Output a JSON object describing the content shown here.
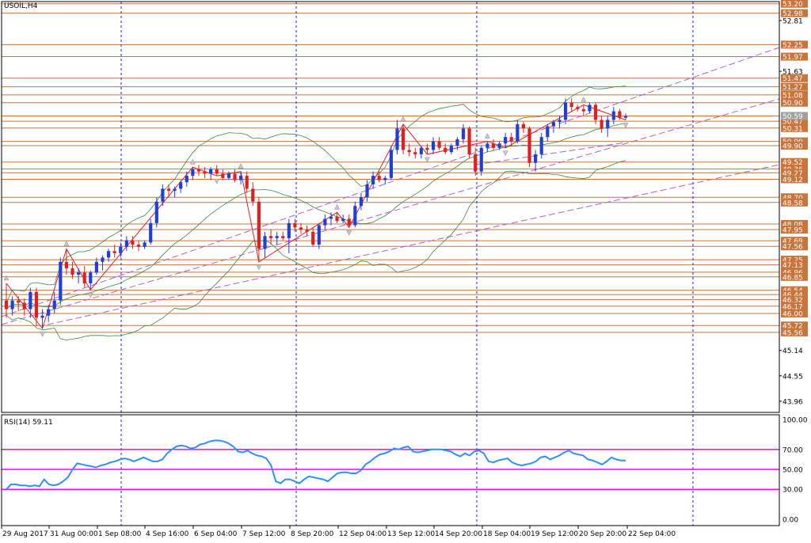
{
  "symbol_label": "USOIL,H4",
  "rsi_label": "RSI(14) 59.11",
  "colors": {
    "bull": "#1f3fd8",
    "bear": "#e02020",
    "level_line": "#c8743a",
    "level_box": "#c8743a",
    "band": "#3a8a3a",
    "channel": "#b060d0",
    "zigzag": "#e02020",
    "rsi_line": "#2e90ff",
    "rsi_level": "#ff00ff",
    "grid": "#2020c0"
  },
  "chart_data": [
    {
      "type": "candlestick",
      "title": "USOIL,H4",
      "ylim": [
        43.7,
        53.25
      ],
      "x_labels": [
        "29 Aug 2017",
        "31 Aug 00:00",
        "1 Sep 08:00",
        "4 Sep 16:00",
        "6 Sep 04:00",
        "7 Sep 12:00",
        "8 Sep 20:00",
        "12 Sep 04:00",
        "13 Sep 12:00",
        "14 Sep 20:00",
        "18 Sep 04:00",
        "19 Sep 12:00",
        "20 Sep 20:00",
        "22 Sep 04:00"
      ],
      "y_ticks": [
        "52.81",
        "51.63",
        "45.14",
        "44.55",
        "43.96"
      ],
      "levels": [
        "53.20",
        "52.98",
        "52.25",
        "51.97",
        "51.47",
        "51.27",
        "51.08",
        "50.90",
        "50.59",
        "50.47",
        "50.31",
        "50.00",
        "49.90",
        "49.52",
        "49.36",
        "49.27",
        "49.12",
        "48.70",
        "48.58",
        "48.08",
        "47.95",
        "47.69",
        "47.56",
        "47.25",
        "47.13",
        "46.96",
        "46.85",
        "46.54",
        "46.44",
        "46.32",
        "46.17",
        "46.00",
        "45.72",
        "45.56"
      ],
      "current_price": "50.59",
      "candles": [
        {
          "o": 46.3,
          "h": 46.7,
          "l": 45.9,
          "c": 46.1
        },
        {
          "o": 46.1,
          "h": 46.4,
          "l": 45.95,
          "c": 46.3
        },
        {
          "o": 46.3,
          "h": 46.4,
          "l": 46.05,
          "c": 46.25
        },
        {
          "o": 46.25,
          "h": 46.35,
          "l": 45.95,
          "c": 46.1
        },
        {
          "o": 46.1,
          "h": 46.6,
          "l": 45.9,
          "c": 46.5
        },
        {
          "o": 46.5,
          "h": 46.6,
          "l": 45.7,
          "c": 45.9
        },
        {
          "o": 45.9,
          "h": 46.1,
          "l": 45.65,
          "c": 45.95
        },
        {
          "o": 45.95,
          "h": 46.2,
          "l": 45.8,
          "c": 46.1
        },
        {
          "o": 46.1,
          "h": 46.5,
          "l": 46.0,
          "c": 46.3
        },
        {
          "o": 46.3,
          "h": 47.3,
          "l": 46.2,
          "c": 47.2
        },
        {
          "o": 47.2,
          "h": 47.5,
          "l": 46.9,
          "c": 47.05
        },
        {
          "o": 47.05,
          "h": 47.2,
          "l": 46.8,
          "c": 46.9
        },
        {
          "o": 46.9,
          "h": 47.05,
          "l": 46.7,
          "c": 46.95
        },
        {
          "o": 46.95,
          "h": 47.1,
          "l": 46.6,
          "c": 46.7
        },
        {
          "o": 46.7,
          "h": 47.0,
          "l": 46.55,
          "c": 46.95
        },
        {
          "o": 46.95,
          "h": 47.3,
          "l": 46.9,
          "c": 47.2
        },
        {
          "o": 47.2,
          "h": 47.35,
          "l": 47.0,
          "c": 47.3
        },
        {
          "o": 47.3,
          "h": 47.5,
          "l": 47.2,
          "c": 47.45
        },
        {
          "o": 47.45,
          "h": 47.6,
          "l": 47.3,
          "c": 47.4
        },
        {
          "o": 47.4,
          "h": 47.65,
          "l": 47.3,
          "c": 47.55
        },
        {
          "o": 47.55,
          "h": 47.8,
          "l": 47.45,
          "c": 47.7
        },
        {
          "o": 47.7,
          "h": 47.8,
          "l": 47.5,
          "c": 47.6
        },
        {
          "o": 47.6,
          "h": 47.7,
          "l": 47.45,
          "c": 47.55
        },
        {
          "o": 47.55,
          "h": 47.7,
          "l": 47.5,
          "c": 47.65
        },
        {
          "o": 47.65,
          "h": 48.2,
          "l": 47.6,
          "c": 48.1
        },
        {
          "o": 48.1,
          "h": 48.7,
          "l": 48.0,
          "c": 48.6
        },
        {
          "o": 48.6,
          "h": 49.0,
          "l": 48.5,
          "c": 48.9
        },
        {
          "o": 48.9,
          "h": 49.0,
          "l": 48.7,
          "c": 48.85
        },
        {
          "o": 48.85,
          "h": 48.95,
          "l": 48.7,
          "c": 48.9
        },
        {
          "o": 48.9,
          "h": 49.1,
          "l": 48.8,
          "c": 49.05
        },
        {
          "o": 49.05,
          "h": 49.3,
          "l": 48.95,
          "c": 49.2
        },
        {
          "o": 49.2,
          "h": 49.4,
          "l": 49.1,
          "c": 49.35
        },
        {
          "o": 49.35,
          "h": 49.45,
          "l": 49.2,
          "c": 49.3
        },
        {
          "o": 49.3,
          "h": 49.4,
          "l": 49.15,
          "c": 49.25
        },
        {
          "o": 49.25,
          "h": 49.4,
          "l": 49.1,
          "c": 49.35
        },
        {
          "o": 49.35,
          "h": 49.45,
          "l": 49.2,
          "c": 49.25
        },
        {
          "o": 49.25,
          "h": 49.35,
          "l": 49.1,
          "c": 49.15
        },
        {
          "o": 49.15,
          "h": 49.3,
          "l": 49.1,
          "c": 49.25
        },
        {
          "o": 49.25,
          "h": 49.35,
          "l": 49.05,
          "c": 49.1
        },
        {
          "o": 49.1,
          "h": 49.3,
          "l": 49.0,
          "c": 49.2
        },
        {
          "o": 49.2,
          "h": 49.3,
          "l": 48.8,
          "c": 48.9
        },
        {
          "o": 48.9,
          "h": 49.05,
          "l": 48.5,
          "c": 48.6
        },
        {
          "o": 48.6,
          "h": 48.7,
          "l": 47.2,
          "c": 47.5
        },
        {
          "o": 47.5,
          "h": 47.9,
          "l": 47.3,
          "c": 47.8
        },
        {
          "o": 47.8,
          "h": 47.95,
          "l": 47.6,
          "c": 47.75
        },
        {
          "o": 47.75,
          "h": 47.9,
          "l": 47.6,
          "c": 47.8
        },
        {
          "o": 47.8,
          "h": 47.9,
          "l": 47.7,
          "c": 47.75
        },
        {
          "o": 47.75,
          "h": 48.2,
          "l": 47.4,
          "c": 48.1
        },
        {
          "o": 48.1,
          "h": 48.2,
          "l": 47.9,
          "c": 48.0
        },
        {
          "o": 48.0,
          "h": 48.1,
          "l": 47.85,
          "c": 47.95
        },
        {
          "o": 47.95,
          "h": 48.05,
          "l": 47.8,
          "c": 47.9
        },
        {
          "o": 47.9,
          "h": 48.0,
          "l": 47.55,
          "c": 47.6
        },
        {
          "o": 47.6,
          "h": 48.1,
          "l": 47.5,
          "c": 48.05
        },
        {
          "o": 48.05,
          "h": 48.3,
          "l": 47.95,
          "c": 48.2
        },
        {
          "o": 48.2,
          "h": 48.35,
          "l": 48.05,
          "c": 48.25
        },
        {
          "o": 48.25,
          "h": 48.35,
          "l": 48.1,
          "c": 48.15
        },
        {
          "o": 48.15,
          "h": 48.3,
          "l": 48.1,
          "c": 48.2
        },
        {
          "o": 48.2,
          "h": 48.3,
          "l": 48.0,
          "c": 48.05
        },
        {
          "o": 48.05,
          "h": 48.6,
          "l": 48.0,
          "c": 48.5
        },
        {
          "o": 48.5,
          "h": 48.8,
          "l": 48.4,
          "c": 48.7
        },
        {
          "o": 48.7,
          "h": 49.1,
          "l": 48.6,
          "c": 49.0
        },
        {
          "o": 49.0,
          "h": 49.3,
          "l": 48.9,
          "c": 49.2
        },
        {
          "o": 49.2,
          "h": 49.3,
          "l": 49.05,
          "c": 49.1
        },
        {
          "o": 49.1,
          "h": 49.2,
          "l": 49.0,
          "c": 49.15
        },
        {
          "o": 49.15,
          "h": 49.9,
          "l": 49.1,
          "c": 49.8
        },
        {
          "o": 49.8,
          "h": 50.5,
          "l": 49.7,
          "c": 50.3
        },
        {
          "o": 50.3,
          "h": 50.4,
          "l": 49.7,
          "c": 49.8
        },
        {
          "o": 49.8,
          "h": 49.95,
          "l": 49.65,
          "c": 49.75
        },
        {
          "o": 49.75,
          "h": 49.85,
          "l": 49.6,
          "c": 49.7
        },
        {
          "o": 49.7,
          "h": 49.9,
          "l": 49.6,
          "c": 49.85
        },
        {
          "o": 49.85,
          "h": 49.95,
          "l": 49.7,
          "c": 49.8
        },
        {
          "o": 49.8,
          "h": 50.1,
          "l": 49.7,
          "c": 50.0
        },
        {
          "o": 50.0,
          "h": 50.1,
          "l": 49.8,
          "c": 49.85
        },
        {
          "o": 49.85,
          "h": 49.95,
          "l": 49.7,
          "c": 49.75
        },
        {
          "o": 49.75,
          "h": 49.95,
          "l": 49.7,
          "c": 49.9
        },
        {
          "o": 49.9,
          "h": 50.1,
          "l": 49.8,
          "c": 50.05
        },
        {
          "o": 50.05,
          "h": 50.4,
          "l": 49.95,
          "c": 50.3
        },
        {
          "o": 50.3,
          "h": 50.35,
          "l": 49.6,
          "c": 49.7
        },
        {
          "o": 49.7,
          "h": 49.85,
          "l": 49.2,
          "c": 49.3
        },
        {
          "o": 49.3,
          "h": 49.9,
          "l": 49.2,
          "c": 49.85
        },
        {
          "o": 49.85,
          "h": 50.0,
          "l": 49.75,
          "c": 49.95
        },
        {
          "o": 49.95,
          "h": 50.05,
          "l": 49.8,
          "c": 49.85
        },
        {
          "o": 49.85,
          "h": 50.0,
          "l": 49.8,
          "c": 49.95
        },
        {
          "o": 49.95,
          "h": 50.2,
          "l": 49.85,
          "c": 50.1
        },
        {
          "o": 50.1,
          "h": 50.2,
          "l": 49.9,
          "c": 50.0
        },
        {
          "o": 50.0,
          "h": 50.5,
          "l": 49.95,
          "c": 50.4
        },
        {
          "o": 50.4,
          "h": 50.45,
          "l": 50.2,
          "c": 50.3
        },
        {
          "o": 50.3,
          "h": 50.35,
          "l": 49.4,
          "c": 49.5
        },
        {
          "o": 49.5,
          "h": 49.8,
          "l": 49.3,
          "c": 49.7
        },
        {
          "o": 49.7,
          "h": 50.2,
          "l": 49.6,
          "c": 50.1
        },
        {
          "o": 50.1,
          "h": 50.4,
          "l": 50.0,
          "c": 50.35
        },
        {
          "o": 50.35,
          "h": 50.5,
          "l": 50.2,
          "c": 50.45
        },
        {
          "o": 50.45,
          "h": 50.6,
          "l": 50.3,
          "c": 50.5
        },
        {
          "o": 50.5,
          "h": 51.0,
          "l": 50.4,
          "c": 50.9
        },
        {
          "o": 50.9,
          "h": 51.0,
          "l": 50.7,
          "c": 50.8
        },
        {
          "o": 50.8,
          "h": 50.85,
          "l": 50.7,
          "c": 50.75
        },
        {
          "o": 50.75,
          "h": 50.85,
          "l": 50.6,
          "c": 50.7
        },
        {
          "o": 50.7,
          "h": 50.9,
          "l": 50.65,
          "c": 50.85
        },
        {
          "o": 50.85,
          "h": 50.9,
          "l": 50.4,
          "c": 50.5
        },
        {
          "o": 50.5,
          "h": 50.6,
          "l": 50.2,
          "c": 50.3
        },
        {
          "o": 50.3,
          "h": 50.6,
          "l": 50.1,
          "c": 50.5
        },
        {
          "o": 50.5,
          "h": 50.8,
          "l": 50.4,
          "c": 50.7
        },
        {
          "o": 50.7,
          "h": 50.75,
          "l": 50.5,
          "c": 50.55
        },
        {
          "o": 50.55,
          "h": 50.65,
          "l": 50.5,
          "c": 50.59
        }
      ]
    },
    {
      "type": "line",
      "title": "RSI(14) 59.11",
      "ylim": [
        0,
        100
      ],
      "y_ticks": [
        "100.00",
        "70.00",
        "50.00",
        "30.00",
        "0.00"
      ],
      "levels": [
        70,
        50,
        30
      ],
      "series": [
        {
          "values": [
            30,
            35,
            35,
            34,
            34,
            33,
            34,
            33,
            40,
            35,
            34,
            35,
            38,
            42,
            50,
            56,
            55,
            54,
            53,
            52,
            54,
            55,
            57,
            58,
            60,
            61,
            60,
            58,
            60,
            62,
            60,
            58,
            58,
            60,
            66,
            70,
            73,
            74,
            73,
            71,
            72,
            75,
            76,
            78,
            79,
            79,
            78,
            76,
            73,
            68,
            67,
            69,
            66,
            64,
            63,
            61,
            54,
            38,
            36,
            40,
            40,
            38,
            36,
            40,
            43,
            42,
            41,
            40,
            38,
            42,
            46,
            47,
            47,
            46,
            46,
            49,
            55,
            58,
            62,
            65,
            66,
            68,
            71,
            70,
            72,
            73,
            68,
            67,
            68,
            69,
            70,
            70,
            70,
            69,
            68,
            65,
            63,
            66,
            64,
            68,
            69,
            66,
            58,
            57,
            59,
            60,
            61,
            57,
            55,
            54,
            55,
            56,
            58,
            62,
            63,
            60,
            62,
            64,
            67,
            69,
            66,
            65,
            64,
            60,
            59,
            57,
            55,
            58,
            62,
            60,
            59,
            59
          ]
        }
      ]
    }
  ]
}
